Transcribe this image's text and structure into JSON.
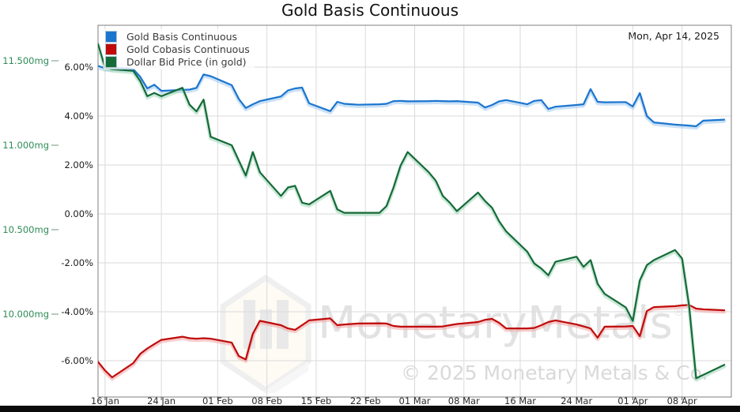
{
  "title": "Gold Basis Continuous",
  "date_annotation": "Mon, Apr 14, 2025",
  "legend": [
    {
      "label": "Gold Basis Continuous",
      "color": "#1b75cf"
    },
    {
      "label": "Gold Cobasis Continuous",
      "color": "#c00a0a"
    },
    {
      "label": "Dollar Bid Price (in gold)",
      "color": "#156b38"
    }
  ],
  "watermark": {
    "brand": "MonetaryMetals",
    "reg": "®",
    "copyright": "© 2025 Monetary Metals & Co."
  },
  "axes": {
    "left_outer_mg": {
      "unit": "mg",
      "label_color": "#2e8b57",
      "tick_labels": [
        "11.500mg",
        "11.000mg",
        "10.500mg",
        "10.000mg"
      ],
      "tick_values": [
        11.5,
        11.0,
        10.5,
        10.0
      ]
    },
    "left_inner_percent": {
      "unit": "%",
      "label_color": "#1a1a1a",
      "tick_labels": [
        "6.00%",
        "4.00%",
        "2.00%",
        "0.00%",
        "-2.00%",
        "-4.00%",
        "-6.00%"
      ],
      "tick_values": [
        6,
        4,
        2,
        0,
        -2,
        -4,
        -6
      ]
    },
    "x": {
      "label_color": "#2b2b2b",
      "tick_labels": [
        "16 Jan",
        "24 Jan",
        "01 Feb",
        "08 Feb",
        "15 Feb",
        "22 Feb",
        "01 Mar",
        "08 Mar",
        "16 Mar",
        "24 Mar",
        "01 Apr",
        "08 Apr"
      ],
      "tick_day_offsets": [
        1,
        9,
        17,
        24,
        31,
        38,
        45,
        52,
        60,
        68,
        76,
        83
      ],
      "range_days": [
        0,
        90
      ]
    }
  },
  "chart_data": {
    "type": "line",
    "grid": true,
    "legend_position": "top-left",
    "x_dates": [
      "Jan 15",
      "Jan 16",
      "Jan 17",
      "Jan 20",
      "Jan 21",
      "Jan 22",
      "Jan 23",
      "Jan 24",
      "Jan 27",
      "Jan 28",
      "Jan 29",
      "Jan 30",
      "Jan 31",
      "Feb 3",
      "Feb 4",
      "Feb 5",
      "Feb 6",
      "Feb 7",
      "Feb 10",
      "Feb 11",
      "Feb 12",
      "Feb 13",
      "Feb 14",
      "Feb 17",
      "Feb 18",
      "Feb 19",
      "Feb 20",
      "Feb 21",
      "Feb 24",
      "Feb 25",
      "Feb 26",
      "Feb 27",
      "Feb 28",
      "Mar 3",
      "Mar 4",
      "Mar 5",
      "Mar 6",
      "Mar 7",
      "Mar 10",
      "Mar 11",
      "Mar 12",
      "Mar 13",
      "Mar 14",
      "Mar 17",
      "Mar 18",
      "Mar 19",
      "Mar 20",
      "Mar 21",
      "Mar 24",
      "Mar 25",
      "Mar 26",
      "Mar 27",
      "Mar 28",
      "Mar 31",
      "Apr 1",
      "Apr 2",
      "Apr 3",
      "Apr 4",
      "Apr 7",
      "Apr 8",
      "Apr 9",
      "Apr 10",
      "Apr 11",
      "Apr 14"
    ],
    "x_day_offsets": [
      0,
      1,
      2,
      5,
      6,
      7,
      8,
      9,
      12,
      13,
      14,
      15,
      16,
      19,
      20,
      21,
      22,
      23,
      26,
      27,
      28,
      29,
      30,
      33,
      34,
      35,
      36,
      37,
      40,
      41,
      42,
      43,
      44,
      47,
      48,
      49,
      50,
      51,
      54,
      55,
      56,
      57,
      58,
      61,
      62,
      63,
      64,
      65,
      68,
      69,
      70,
      71,
      72,
      75,
      76,
      77,
      78,
      79,
      82,
      83,
      84,
      85,
      86,
      89
    ],
    "percent_axis_range": [
      -7.4,
      7.7
    ],
    "mg_axis_range": [
      9.5,
      11.71
    ],
    "series": [
      {
        "name": "Gold Basis Continuous",
        "axis": "percent",
        "unit": "%",
        "color": "#1b75cf",
        "halo": "#a8cdf0",
        "values": [
          6.05,
          5.95,
          5.96,
          5.92,
          5.6,
          5.13,
          5.28,
          5.03,
          5.07,
          5.08,
          5.15,
          5.7,
          5.63,
          5.26,
          4.7,
          4.33,
          4.48,
          4.61,
          4.8,
          5.05,
          5.13,
          5.16,
          4.52,
          4.2,
          4.58,
          4.5,
          4.48,
          4.46,
          4.48,
          4.5,
          4.61,
          4.62,
          4.6,
          4.61,
          4.62,
          4.61,
          4.6,
          4.61,
          4.55,
          4.35,
          4.45,
          4.6,
          4.65,
          4.48,
          4.62,
          4.65,
          4.29,
          4.38,
          4.45,
          4.48,
          5.1,
          4.58,
          4.56,
          4.57,
          4.39,
          4.94,
          4.0,
          3.74,
          3.65,
          3.63,
          3.61,
          3.58,
          3.81,
          3.85
        ]
      },
      {
        "name": "Gold Cobasis Continuous",
        "axis": "percent",
        "unit": "%",
        "color": "#c00a0a",
        "halo": "#f2aaaa",
        "values": [
          -6.05,
          -6.4,
          -6.68,
          -6.1,
          -5.72,
          -5.5,
          -5.32,
          -5.15,
          -5.02,
          -5.08,
          -5.1,
          -5.08,
          -5.1,
          -5.26,
          -5.81,
          -5.95,
          -4.9,
          -4.37,
          -4.55,
          -4.68,
          -4.74,
          -4.55,
          -4.35,
          -4.27,
          -4.55,
          -4.52,
          -4.5,
          -4.48,
          -4.47,
          -4.48,
          -4.58,
          -4.61,
          -4.61,
          -4.61,
          -4.61,
          -4.6,
          -4.55,
          -4.5,
          -4.42,
          -4.33,
          -4.29,
          -4.45,
          -4.68,
          -4.68,
          -4.66,
          -4.55,
          -4.42,
          -4.35,
          -4.52,
          -4.6,
          -4.68,
          -5.06,
          -4.61,
          -4.6,
          -4.58,
          -5.0,
          -3.97,
          -3.81,
          -3.77,
          -3.74,
          -3.72,
          -3.87,
          -3.9,
          -3.94
        ]
      },
      {
        "name": "Dollar Bid Price (in gold)",
        "axis": "mg",
        "unit": "mg",
        "color": "#156b38",
        "halo": "#a8d8be",
        "values": [
          11.6,
          11.46,
          11.45,
          11.44,
          11.38,
          11.29,
          11.31,
          11.29,
          11.34,
          11.24,
          11.2,
          11.27,
          11.05,
          11.0,
          10.91,
          10.82,
          10.96,
          10.84,
          10.7,
          10.75,
          10.76,
          10.66,
          10.65,
          10.73,
          10.62,
          10.6,
          10.6,
          10.6,
          10.6,
          10.64,
          10.75,
          10.88,
          10.96,
          10.84,
          10.79,
          10.7,
          10.66,
          10.61,
          10.72,
          10.67,
          10.63,
          10.55,
          10.49,
          10.37,
          10.3,
          10.27,
          10.23,
          10.31,
          10.34,
          10.28,
          10.32,
          10.18,
          10.12,
          10.04,
          9.96,
          10.2,
          10.29,
          10.32,
          10.38,
          10.33,
          10.05,
          9.62,
          9.64,
          9.7
        ]
      }
    ]
  }
}
